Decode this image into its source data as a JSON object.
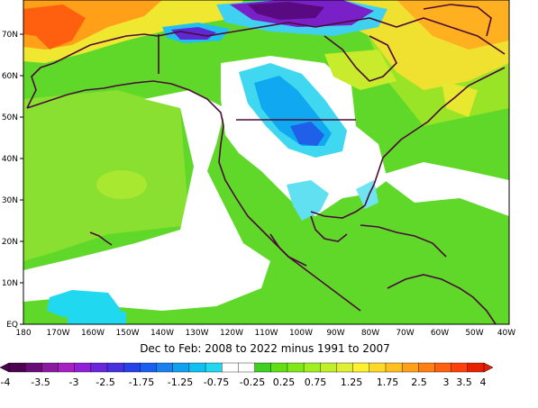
{
  "map": {
    "caption": "Dec to Feb: 2008 to 2022 minus 1991 to 2007",
    "lat_ticks": [
      "EQ",
      "10N",
      "20N",
      "30N",
      "40N",
      "50N",
      "60N",
      "70N"
    ],
    "lon_ticks": [
      "180",
      "170W",
      "160W",
      "150W",
      "140W",
      "130W",
      "120W",
      "110W",
      "100W",
      "90W",
      "80W",
      "70W",
      "60W",
      "50W",
      "40W"
    ],
    "lon_range": [
      -180,
      -40
    ],
    "lat_range": [
      0,
      75
    ],
    "coastline_color": "#4a0b3a"
  },
  "colorbar": {
    "labels": [
      "-4",
      "-3.5",
      "-3",
      "-2.5",
      "-1.75",
      "-1.25",
      "-0.75",
      "-0.25",
      "0.25",
      "0.75",
      "1.25",
      "1.75",
      "2.5",
      "3",
      "3.5",
      "4"
    ],
    "colors": [
      "#4b0050",
      "#6a0a78",
      "#8a1aa0",
      "#a620c4",
      "#9020d8",
      "#6a26dc",
      "#4630e0",
      "#2840e8",
      "#1a60f0",
      "#1a80f0",
      "#10a0f0",
      "#10c0f0",
      "#20d8f0",
      "#ffffff",
      "#ffffff",
      "#40d020",
      "#60e010",
      "#80e818",
      "#a0f020",
      "#c0f028",
      "#e0f030",
      "#fff030",
      "#ffd828",
      "#ffc020",
      "#ffa018",
      "#ff8010",
      "#ff6010",
      "#ff4008",
      "#e82000"
    ]
  }
}
